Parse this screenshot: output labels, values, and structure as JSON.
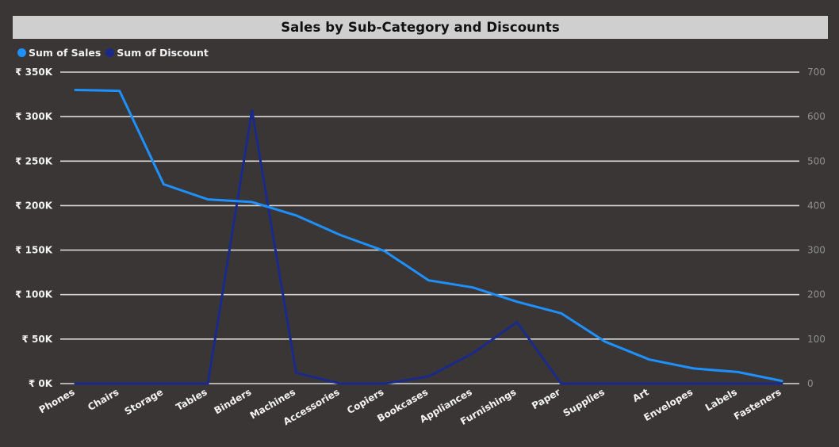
{
  "chart_data": {
    "type": "line",
    "title": "Sales by Sub-Category and Discounts",
    "categories": [
      "Phones",
      "Chairs",
      "Storage",
      "Tables",
      "Binders",
      "Machines",
      "Accessories",
      "Copiers",
      "Bookcases",
      "Appliances",
      "Furnishings",
      "Paper",
      "Supplies",
      "Art",
      "Envelopes",
      "Labels",
      "Fasteners"
    ],
    "series": [
      {
        "name": "Sum of Sales",
        "axis": "left",
        "color": "#1e90ff",
        "values": [
          330000,
          329000,
          224000,
          207000,
          204000,
          189000,
          167000,
          149000,
          116000,
          108000,
          92000,
          79000,
          47000,
          27000,
          17000,
          13000,
          3000
        ]
      },
      {
        "name": "Sum of Discount",
        "axis": "right",
        "color": "#1a2a8a",
        "values": [
          0,
          0,
          0,
          0,
          614,
          24,
          0,
          0,
          16,
          68,
          138,
          0,
          0,
          0,
          0,
          0,
          0
        ]
      }
    ],
    "y_left": {
      "min": 0,
      "max": 350000,
      "ticks": [
        0,
        50000,
        100000,
        150000,
        200000,
        250000,
        300000,
        350000
      ],
      "tick_labels": [
        "₹ 0K",
        "₹ 50K",
        "₹ 100K",
        "₹ 150K",
        "₹ 200K",
        "₹ 250K",
        "₹ 300K",
        "₹ 350K"
      ]
    },
    "y_right": {
      "min": 0,
      "max": 700,
      "ticks": [
        0,
        100,
        200,
        300,
        400,
        500,
        600,
        700
      ],
      "tick_labels": [
        "0",
        "100",
        "200",
        "300",
        "400",
        "500",
        "600",
        "700"
      ]
    },
    "grid": true,
    "grid_color": "#d9d9d9",
    "legend_position": "top-left",
    "background_color": "#3a3636",
    "title_bar_color": "#cfcfcf"
  }
}
